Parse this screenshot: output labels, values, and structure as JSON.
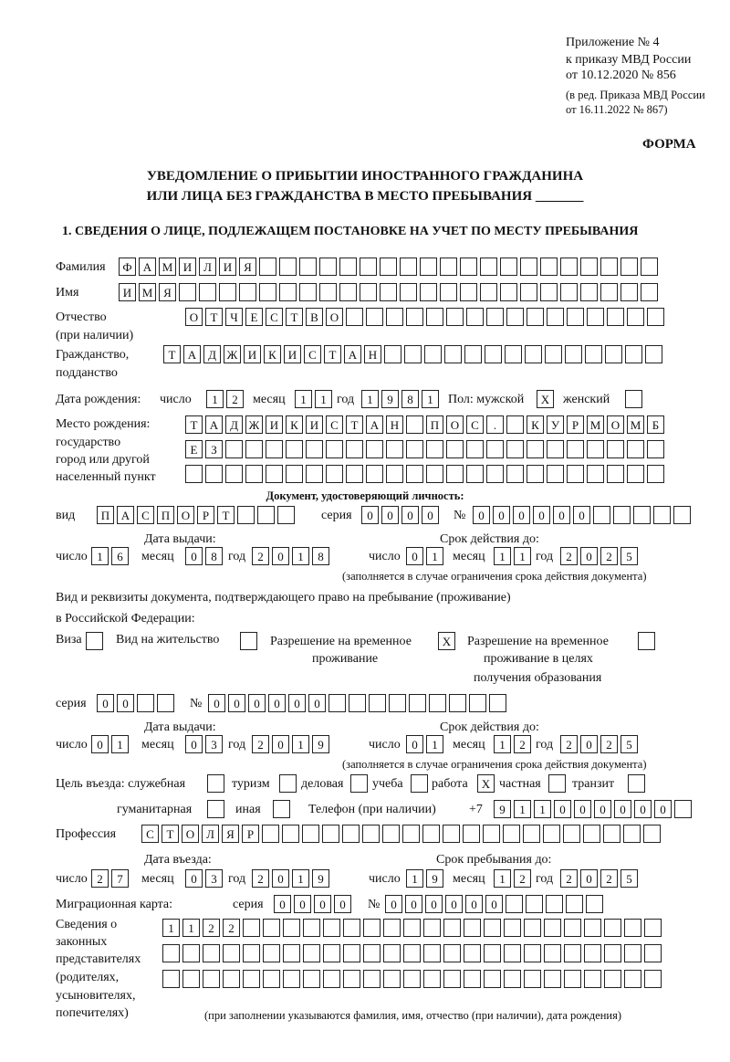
{
  "header": {
    "appendix": "Приложение № 4",
    "order": "к приказу МВД России",
    "date": "от 10.12.2020 № 856",
    "edit1": "(в ред. Приказа МВД России",
    "edit2": "от 16.11.2022 № 867)",
    "forma": "ФОРМА",
    "title1": "УВЕДОМЛЕНИЕ О ПРИБЫТИИ ИНОСТРАННОГО ГРАЖДАНИНА",
    "title2": "ИЛИ ЛИЦА БЕЗ ГРАЖДАНСТВА В МЕСТО ПРЕБЫВАНИЯ _______",
    "section1": "1. СВЕДЕНИЯ О ЛИЦЕ, ПОДЛЕЖАЩЕМ ПОСТАНОВКЕ НА УЧЕТ ПО МЕСТУ ПРЕБЫВАНИЯ"
  },
  "labels": {
    "surname": "Фамилия",
    "name": "Имя",
    "patronymic": "Отчество",
    "patronymic2": "(при наличии)",
    "citizenship": "Гражданство,",
    "citizenship2": "подданство",
    "birth_date": "Дата рождения:",
    "day": "число",
    "month": "месяц",
    "year": "год",
    "sex": "Пол: мужской",
    "female": "женский",
    "birthplace1": "Место рождения:",
    "birthplace2": "государство",
    "birthplace3": "город или другой",
    "birthplace4": "населенный пункт",
    "id_doc": "Документ, удостоверяющий личность:",
    "kind": "вид",
    "series": "серия",
    "number": "№",
    "issue_date": "Дата выдачи:",
    "valid_until": "Срок действия до:",
    "validity_note": "(заполняется в случае ограничения срока действия документа)",
    "right_doc1": "Вид и реквизиты документа, подтверждающего право на пребывание (проживание)",
    "right_doc2": "в Российской Федерации:",
    "visa": "Виза",
    "residence": "Вид на жительство",
    "rvp1": "Разрешение на временное",
    "rvp2": "проживание",
    "rvpo1": "Разрешение на временное",
    "rvpo2": "проживание в целях",
    "rvpo3": "получения образования",
    "purpose": "Цель въезда: служебная",
    "tourism": "туризм",
    "business": "деловая",
    "study": "учеба",
    "work": "работа",
    "private": "частная",
    "transit": "транзит",
    "humanitarian": "гуманитарная",
    "other": "иная",
    "phone": "Телефон (при наличии)",
    "phone_prefix": "+7",
    "profession": "Профессия",
    "entry_date": "Дата въезда:",
    "stay_until": "Срок пребывания до:",
    "migration_card": "Миграционная карта:",
    "reps1": "Сведения о",
    "reps2": "законных",
    "reps3": "представителях",
    "reps4": "(родителях,",
    "reps5": "усыновителях,",
    "reps6": "попечителях)",
    "reps_note": "(при заполнении указываются фамилия, имя, отчество (при наличии), дата рождения)"
  },
  "values": {
    "surname": "ФАМИЛИЯ",
    "name": "ИМЯ",
    "patronymic": "ОТЧЕСТВО",
    "citizenship": "ТАДЖИКИСТАН",
    "birth_day": "12",
    "birth_month": "11",
    "birth_year": "1981",
    "sex_male": "X",
    "sex_female": "",
    "birthplace_1": "ТАДЖИКИСТАН ПОС. КУРМОМБ",
    "birthplace_2": "ЕЗ",
    "birthplace_3": "",
    "id_kind": "ПАСПОРТ",
    "id_series": "0000",
    "id_number": "000000",
    "id_issue_day": "16",
    "id_issue_month": "08",
    "id_issue_year": "2018",
    "id_valid_day": "01",
    "id_valid_month": "11",
    "id_valid_year": "2025",
    "visa": "",
    "residence": "",
    "rvp": "X",
    "rvp_edu": "",
    "right_series": "00",
    "right_number": "000000",
    "right_issue_day": "01",
    "right_issue_month": "03",
    "right_issue_year": "2019",
    "right_valid_day": "01",
    "right_valid_month": "12",
    "right_valid_year": "2025",
    "purpose_official": "",
    "purpose_tourism": "",
    "purpose_business": "",
    "purpose_study": "",
    "purpose_work": "X",
    "purpose_private": "",
    "purpose_transit": "",
    "purpose_humanitarian": "",
    "purpose_other": "",
    "phone": "911000000",
    "profession": "СТОЛЯР",
    "entry_day": "27",
    "entry_month": "03",
    "entry_year": "2019",
    "stay_day": "19",
    "stay_month": "12",
    "stay_year": "2025",
    "mc_series": "0000",
    "mc_number": "000000",
    "reps_1": "1122",
    "reps_2": "",
    "reps_3": ""
  }
}
